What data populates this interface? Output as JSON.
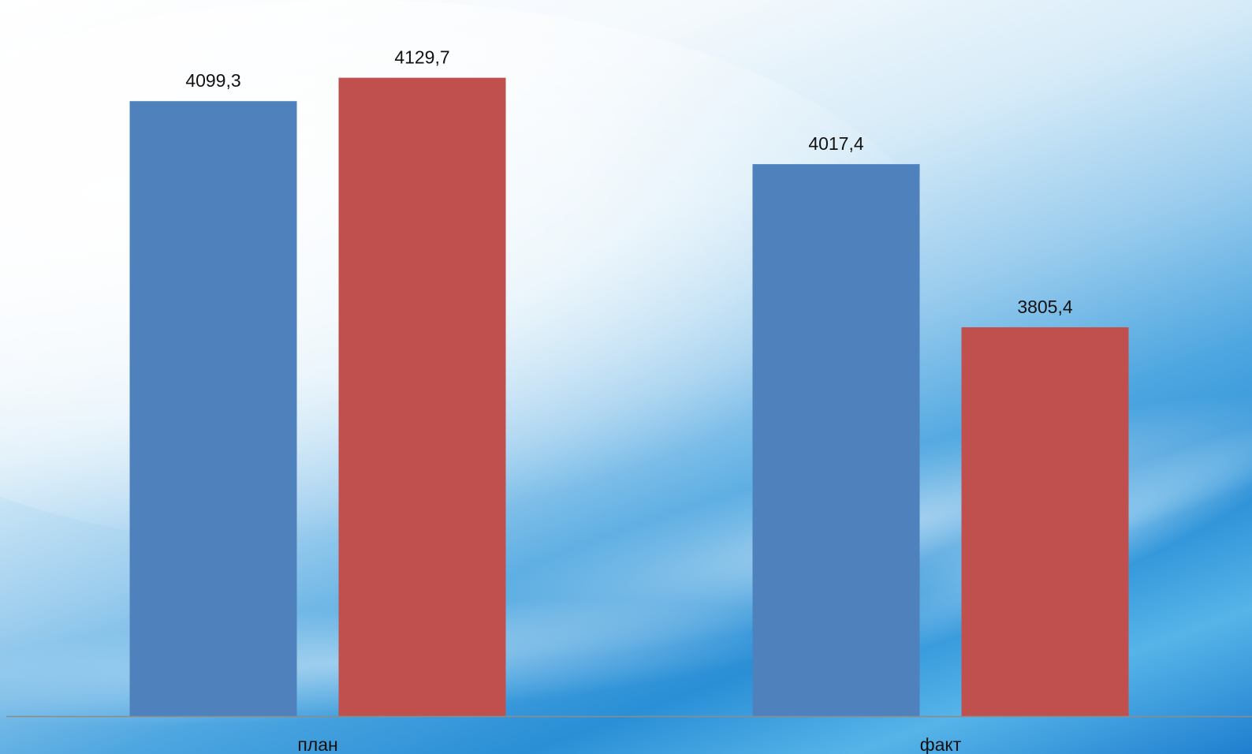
{
  "chart_data": {
    "type": "bar",
    "categories": [
      "план",
      "факт"
    ],
    "series": [
      {
        "color": "#4f81bd",
        "values": [
          4099.3,
          4017.4
        ],
        "labels": [
          "4099,3",
          "4017,4"
        ]
      },
      {
        "color": "#c0504d",
        "values": [
          4129.7,
          3805.4
        ],
        "labels": [
          "4129,7",
          "3805,4"
        ]
      }
    ],
    "title": "",
    "xlabel": "",
    "ylabel": "",
    "ylim": [
      3300,
      4200
    ],
    "grid": false,
    "legend": "none",
    "axis_color": "#8c8c8c"
  }
}
